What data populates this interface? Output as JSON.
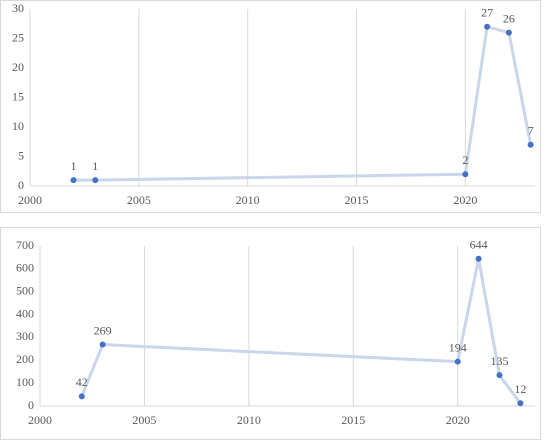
{
  "chart_data": [
    {
      "type": "line",
      "x": [
        2002,
        2003,
        2020,
        2021,
        2022,
        2023
      ],
      "series": [
        {
          "color": "#4472c4",
          "values": [
            1,
            1,
            2,
            27,
            26,
            7
          ]
        }
      ],
      "xlim": [
        2000,
        2023.2
      ],
      "xticks": [
        2000,
        2005,
        2010,
        2015,
        2020
      ],
      "ylim": [
        0,
        30
      ],
      "yticks": [
        0,
        5,
        10,
        15,
        20,
        25,
        30
      ],
      "xgrid": true
    },
    {
      "type": "line",
      "x": [
        2002,
        2003,
        2020,
        2021,
        2022,
        2023
      ],
      "series": [
        {
          "color": "#4472c4",
          "values": [
            42,
            269,
            194,
            644,
            135,
            12
          ]
        }
      ],
      "xlim": [
        2000,
        2023.7
      ],
      "xticks": [
        2000,
        2005,
        2010,
        2015,
        2020
      ],
      "ylim": [
        0,
        700
      ],
      "yticks": [
        0,
        100,
        200,
        300,
        400,
        500,
        600,
        700
      ],
      "xgrid": true
    }
  ]
}
